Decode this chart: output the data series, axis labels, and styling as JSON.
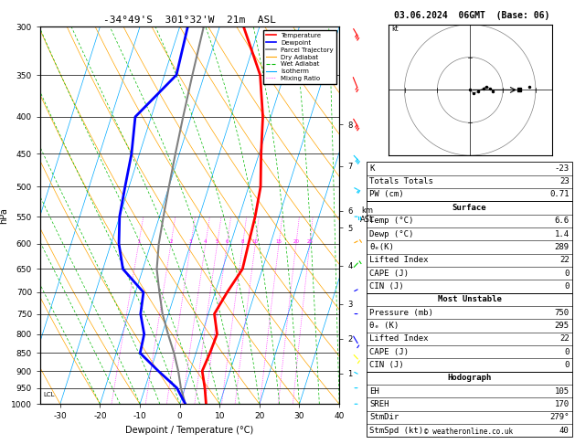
{
  "title_main": "-34°49'S  301°32'W  21m  ASL",
  "title_date": "03.06.2024  06GMT  (Base: 06)",
  "ylabel_left": "hPa",
  "xlabel": "Dewpoint / Temperature (°C)",
  "pressure_ticks": [
    300,
    350,
    400,
    450,
    500,
    550,
    600,
    650,
    700,
    750,
    800,
    850,
    900,
    950,
    1000
  ],
  "temp_min": -35,
  "temp_max": 40,
  "temp_ticks": [
    -30,
    -20,
    -10,
    0,
    10,
    20,
    30,
    40
  ],
  "skew_factor": 30,
  "temp_color": "#ff0000",
  "dewp_color": "#0000ff",
  "parcel_color": "#808080",
  "dry_adiabat_color": "#ffa500",
  "wet_adiabat_color": "#00bb00",
  "isotherm_color": "#00aaff",
  "mixing_ratio_color": "#ff00ff",
  "temperature_data": [
    [
      1000,
      6.6
    ],
    [
      950,
      5.0
    ],
    [
      900,
      3.0
    ],
    [
      850,
      3.5
    ],
    [
      800,
      3.8
    ],
    [
      750,
      1.5
    ],
    [
      700,
      3.0
    ],
    [
      650,
      5.0
    ],
    [
      600,
      4.5
    ],
    [
      550,
      4.0
    ],
    [
      500,
      3.0
    ],
    [
      450,
      0.5
    ],
    [
      400,
      -2.0
    ],
    [
      350,
      -6.0
    ],
    [
      300,
      -14.0
    ]
  ],
  "dewpoint_data": [
    [
      1000,
      1.4
    ],
    [
      950,
      -2.0
    ],
    [
      900,
      -8.0
    ],
    [
      850,
      -14.0
    ],
    [
      800,
      -14.5
    ],
    [
      750,
      -17.0
    ],
    [
      700,
      -18.0
    ],
    [
      650,
      -25.0
    ],
    [
      600,
      -28.0
    ],
    [
      550,
      -30.0
    ],
    [
      500,
      -31.0
    ],
    [
      450,
      -32.0
    ],
    [
      400,
      -34.0
    ],
    [
      350,
      -27.0
    ],
    [
      300,
      -28.0
    ]
  ],
  "parcel_data": [
    [
      1000,
      1.4
    ],
    [
      950,
      -1.0
    ],
    [
      900,
      -3.0
    ],
    [
      850,
      -5.5
    ],
    [
      800,
      -8.5
    ],
    [
      750,
      -11.5
    ],
    [
      700,
      -14.0
    ],
    [
      650,
      -16.5
    ],
    [
      600,
      -18.0
    ],
    [
      550,
      -19.0
    ],
    [
      500,
      -20.0
    ],
    [
      450,
      -21.0
    ],
    [
      400,
      -22.0
    ],
    [
      350,
      -23.0
    ],
    [
      300,
      -24.0
    ]
  ],
  "km_ticks": [
    1,
    2,
    3,
    4,
    5,
    6,
    7,
    8
  ],
  "km_pressures": [
    907,
    812,
    727,
    643,
    570,
    540,
    468,
    410
  ],
  "lcl_pressure": 970,
  "surface_temp": 6.6,
  "surface_dewp": 1.4,
  "surface_theta_e": 289,
  "surface_lifted_index": 22,
  "surface_cape": 0,
  "surface_cin": 0,
  "mu_pressure": 750,
  "mu_theta_e": 295,
  "mu_lifted_index": 22,
  "mu_cape": 0,
  "mu_cin": 0,
  "K_index": -23,
  "totals_totals": 23,
  "PW_cm": 0.71,
  "EH": 105,
  "SREH": 170,
  "StmDir": "279°",
  "StmSpd_kt": 40,
  "mixing_ratio_values": [
    1,
    2,
    3,
    4,
    5,
    6,
    8,
    10,
    15,
    20,
    25
  ],
  "wind_barb_pressures": [
    1000,
    950,
    900,
    850,
    800,
    750,
    700,
    650,
    600,
    550,
    500,
    450,
    400,
    350,
    300
  ],
  "wind_barb_speeds": [
    5,
    5,
    8,
    10,
    12,
    8,
    5,
    10,
    15,
    20,
    25,
    30,
    35,
    25,
    30
  ],
  "wind_barb_dirs": [
    270,
    270,
    280,
    290,
    300,
    270,
    260,
    250,
    260,
    270,
    280,
    290,
    300,
    310,
    300
  ],
  "hodo_u_pts": [
    0.0,
    1.0,
    2.5,
    4.0,
    5.0,
    6.0,
    7.0
  ],
  "hodo_v_pts": [
    0.0,
    -1.0,
    -0.5,
    0.5,
    1.0,
    0.5,
    -0.5
  ],
  "bg_color": "#ffffff"
}
